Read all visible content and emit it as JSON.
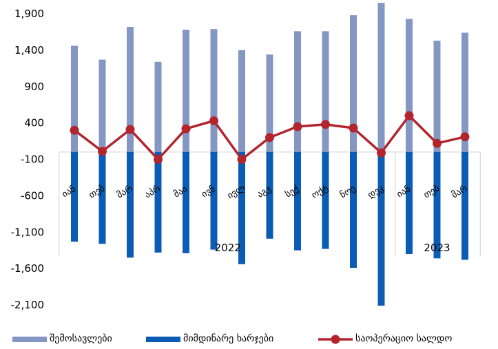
{
  "chart_data": {
    "type": "bar",
    "categories": [
      "იან",
      "თებ",
      "მარ",
      "აპრ",
      "მაი",
      "ივნ",
      "ივლ",
      "აგვ",
      "სექ",
      "ოქტ",
      "ნოე",
      "დეკ",
      "იან",
      "თებ",
      "მარ"
    ],
    "year_groups": [
      {
        "label": "2022",
        "start": 0,
        "end": 11
      },
      {
        "label": "2023",
        "start": 12,
        "end": 14
      }
    ],
    "series": [
      {
        "name": "შემოსავლები",
        "type": "bar",
        "color": "#8497c3",
        "values": [
          1460,
          1270,
          1720,
          1240,
          1680,
          1690,
          1400,
          1340,
          1660,
          1660,
          1880,
          2050,
          1830,
          1530,
          1640
        ]
      },
      {
        "name": "მიმდინარე ხარჯები",
        "type": "bar",
        "color": "#0b5cb5",
        "values": [
          -1230,
          -1260,
          -1450,
          -1380,
          -1390,
          -1340,
          -1540,
          -1190,
          -1350,
          -1330,
          -1590,
          -2110,
          -1400,
          -1460,
          -1480
        ]
      },
      {
        "name": "საოპერაციო სალდო",
        "type": "line",
        "color": "#b2252e",
        "values": [
          300,
          10,
          310,
          -100,
          320,
          430,
          -100,
          200,
          350,
          380,
          330,
          -10,
          500,
          120,
          210
        ]
      }
    ],
    "y_ticks": [
      1900,
      1400,
      900,
      400,
      -100,
      -600,
      -1100,
      -1600,
      -2100
    ],
    "y_tick_labels": [
      "1,900",
      "1,400",
      "900",
      "400",
      "-100",
      "-600",
      "-1,100",
      "-1,600",
      "-2,100"
    ],
    "ylim": [
      -2200,
      2150
    ],
    "legend_position": "bottom",
    "grid": false
  }
}
